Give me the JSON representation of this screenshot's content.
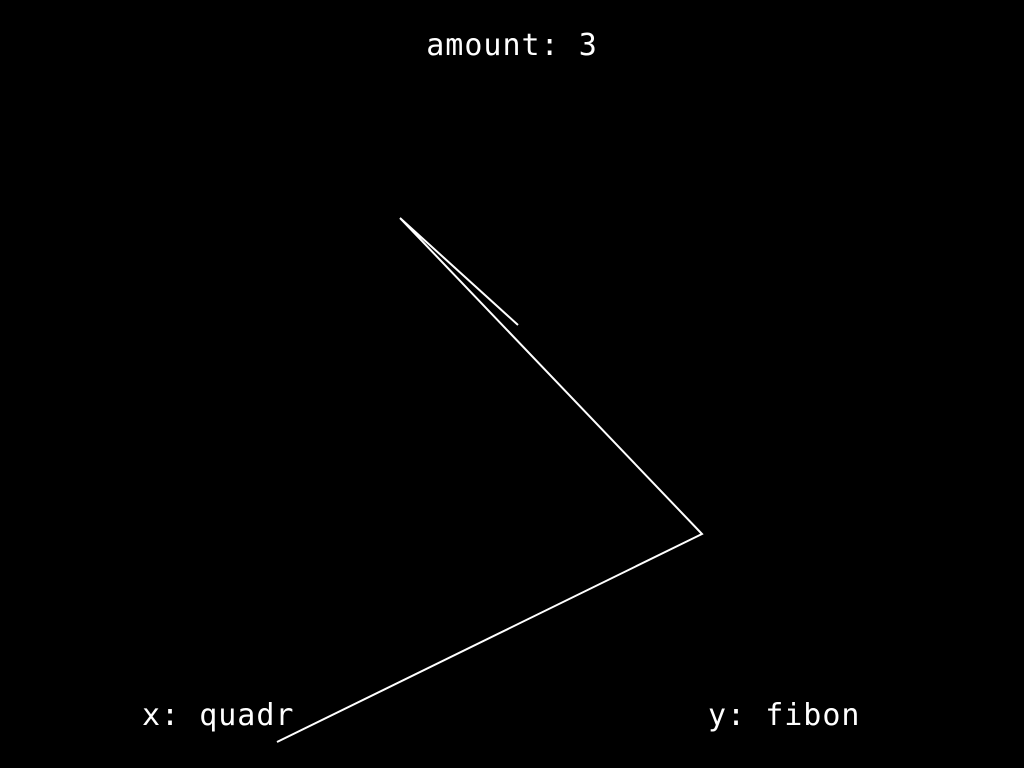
{
  "hud": {
    "amount_label": "amount:",
    "amount_value": "3",
    "x_label": "x:",
    "x_value": "quadr",
    "y_label": "y:",
    "y_value": "fibon"
  },
  "colors": {
    "background": "#000000",
    "foreground": "#ffffff"
  }
}
